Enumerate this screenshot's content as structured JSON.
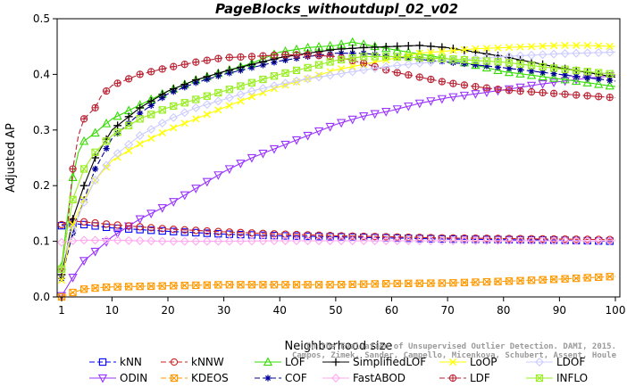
{
  "chart_data": {
    "type": "line",
    "title": "PageBlocks_withoutdupl_02_v02",
    "xlabel": "Neighborhood size",
    "ylabel": "Adjusted AP",
    "xlim": [
      1,
      100
    ],
    "ylim": [
      0,
      0.5
    ],
    "xticks": [
      1,
      10,
      20,
      30,
      40,
      50,
      60,
      70,
      80,
      90,
      100
    ],
    "yticks": [
      0.0,
      0.1,
      0.2,
      0.3,
      0.4,
      0.5
    ],
    "ytick_labels": [
      "0.0",
      "0.1",
      "0.2",
      "0.3",
      "0.4",
      "0.5"
    ],
    "grid": false,
    "legend_position": "bottom",
    "watermark": [
      "Campos, Zimek, Sander, Campello, Micenkova, Schubert, Assent, Houle",
      "On the Evaluation of Unsupervised Outlier Detection. DAMI, 2015."
    ],
    "series": [
      {
        "name": "kNN",
        "color": "#0000ff",
        "marker": "square",
        "dash": "6,3",
        "points": [
          [
            1,
            0.128
          ],
          [
            2,
            0.131
          ],
          [
            3,
            0.132
          ],
          [
            5,
            0.13
          ],
          [
            10,
            0.124
          ],
          [
            20,
            0.118
          ],
          [
            30,
            0.113
          ],
          [
            40,
            0.11
          ],
          [
            50,
            0.108
          ],
          [
            60,
            0.106
          ],
          [
            70,
            0.104
          ],
          [
            80,
            0.103
          ],
          [
            90,
            0.102
          ],
          [
            100,
            0.1
          ]
        ]
      },
      {
        "name": "ODIN",
        "color": "#9933ff",
        "marker": "triangle-down",
        "dash": "",
        "points": [
          [
            1,
            0.002
          ],
          [
            3,
            0.035
          ],
          [
            5,
            0.065
          ],
          [
            8,
            0.09
          ],
          [
            10,
            0.108
          ],
          [
            15,
            0.14
          ],
          [
            20,
            0.165
          ],
          [
            25,
            0.195
          ],
          [
            30,
            0.225
          ],
          [
            35,
            0.25
          ],
          [
            40,
            0.27
          ],
          [
            45,
            0.29
          ],
          [
            50,
            0.31
          ],
          [
            55,
            0.325
          ],
          [
            60,
            0.335
          ],
          [
            65,
            0.348
          ],
          [
            70,
            0.358
          ],
          [
            75,
            0.365
          ],
          [
            80,
            0.372
          ],
          [
            85,
            0.38
          ],
          [
            90,
            0.387
          ],
          [
            95,
            0.393
          ],
          [
            100,
            0.398
          ]
        ]
      },
      {
        "name": "kNNW",
        "color": "#cc2222",
        "marker": "circle",
        "dash": "6,3",
        "points": [
          [
            1,
            0.13
          ],
          [
            2,
            0.134
          ],
          [
            3,
            0.136
          ],
          [
            5,
            0.135
          ],
          [
            10,
            0.13
          ],
          [
            20,
            0.122
          ],
          [
            30,
            0.117
          ],
          [
            40,
            0.113
          ],
          [
            50,
            0.11
          ],
          [
            60,
            0.108
          ],
          [
            70,
            0.106
          ],
          [
            80,
            0.105
          ],
          [
            90,
            0.104
          ],
          [
            100,
            0.103
          ]
        ]
      },
      {
        "name": "KDEOS",
        "color": "#ff9900",
        "marker": "square-x",
        "dash": "6,3",
        "points": [
          [
            1,
            0.0
          ],
          [
            3,
            0.008
          ],
          [
            5,
            0.014
          ],
          [
            8,
            0.017
          ],
          [
            10,
            0.018
          ],
          [
            20,
            0.02
          ],
          [
            30,
            0.022
          ],
          [
            40,
            0.022
          ],
          [
            50,
            0.022
          ],
          [
            60,
            0.024
          ],
          [
            70,
            0.025
          ],
          [
            80,
            0.028
          ],
          [
            90,
            0.032
          ],
          [
            100,
            0.037
          ]
        ]
      },
      {
        "name": "LOF",
        "color": "#33dd00",
        "marker": "triangle",
        "dash": "",
        "points": [
          [
            1,
            0.055
          ],
          [
            2,
            0.14
          ],
          [
            3,
            0.215
          ],
          [
            4,
            0.26
          ],
          [
            5,
            0.28
          ],
          [
            7,
            0.295
          ],
          [
            10,
            0.32
          ],
          [
            15,
            0.345
          ],
          [
            20,
            0.37
          ],
          [
            25,
            0.39
          ],
          [
            30,
            0.405
          ],
          [
            35,
            0.42
          ],
          [
            40,
            0.44
          ],
          [
            45,
            0.448
          ],
          [
            50,
            0.452
          ],
          [
            53,
            0.458
          ],
          [
            55,
            0.454
          ],
          [
            60,
            0.445
          ],
          [
            70,
            0.428
          ],
          [
            80,
            0.405
          ],
          [
            90,
            0.392
          ],
          [
            100,
            0.378
          ]
        ]
      },
      {
        "name": "COF",
        "color": "#000099",
        "marker": "asterisk",
        "dash": "6,3",
        "points": [
          [
            1,
            0.033
          ],
          [
            2,
            0.075
          ],
          [
            3,
            0.115
          ],
          [
            5,
            0.175
          ],
          [
            7,
            0.23
          ],
          [
            10,
            0.285
          ],
          [
            15,
            0.33
          ],
          [
            20,
            0.365
          ],
          [
            25,
            0.385
          ],
          [
            30,
            0.4
          ],
          [
            35,
            0.412
          ],
          [
            40,
            0.424
          ],
          [
            45,
            0.432
          ],
          [
            50,
            0.438
          ],
          [
            55,
            0.438
          ],
          [
            60,
            0.432
          ],
          [
            70,
            0.422
          ],
          [
            80,
            0.412
          ],
          [
            90,
            0.4
          ],
          [
            100,
            0.388
          ]
        ]
      },
      {
        "name": "SimplifiedLOF",
        "color": "#000000",
        "marker": "plus",
        "dash": "",
        "points": [
          [
            1,
            0.04
          ],
          [
            2,
            0.09
          ],
          [
            3,
            0.14
          ],
          [
            5,
            0.2
          ],
          [
            7,
            0.25
          ],
          [
            10,
            0.3
          ],
          [
            15,
            0.34
          ],
          [
            20,
            0.37
          ],
          [
            25,
            0.39
          ],
          [
            30,
            0.405
          ],
          [
            35,
            0.418
          ],
          [
            40,
            0.43
          ],
          [
            45,
            0.438
          ],
          [
            50,
            0.445
          ],
          [
            55,
            0.448
          ],
          [
            60,
            0.45
          ],
          [
            65,
            0.452
          ],
          [
            70,
            0.448
          ],
          [
            75,
            0.44
          ],
          [
            80,
            0.432
          ],
          [
            90,
            0.412
          ],
          [
            100,
            0.395
          ]
        ]
      },
      {
        "name": "FastABOD",
        "color": "#ffaaee",
        "marker": "diamond",
        "dash": "",
        "points": [
          [
            1,
            0.098
          ],
          [
            3,
            0.101
          ],
          [
            5,
            0.102
          ],
          [
            10,
            0.102
          ],
          [
            20,
            0.1
          ],
          [
            30,
            0.1
          ],
          [
            40,
            0.101
          ],
          [
            50,
            0.101
          ],
          [
            60,
            0.101
          ],
          [
            70,
            0.101
          ],
          [
            80,
            0.101
          ],
          [
            90,
            0.101
          ],
          [
            100,
            0.101
          ]
        ]
      },
      {
        "name": "LoOP",
        "color": "#ffff00",
        "marker": "x",
        "dash": "",
        "points": [
          [
            1,
            0.03
          ],
          [
            2,
            0.08
          ],
          [
            3,
            0.13
          ],
          [
            5,
            0.175
          ],
          [
            7,
            0.21
          ],
          [
            10,
            0.245
          ],
          [
            15,
            0.275
          ],
          [
            20,
            0.3
          ],
          [
            25,
            0.32
          ],
          [
            30,
            0.34
          ],
          [
            35,
            0.36
          ],
          [
            40,
            0.378
          ],
          [
            45,
            0.392
          ],
          [
            50,
            0.408
          ],
          [
            55,
            0.418
          ],
          [
            60,
            0.428
          ],
          [
            65,
            0.438
          ],
          [
            70,
            0.442
          ],
          [
            75,
            0.446
          ],
          [
            80,
            0.448
          ],
          [
            85,
            0.45
          ],
          [
            90,
            0.452
          ],
          [
            95,
            0.452
          ],
          [
            100,
            0.45
          ]
        ]
      },
      {
        "name": "LDF",
        "color": "#bb2233",
        "marker": "circle-plus",
        "dash": "6,3",
        "points": [
          [
            1,
            0.05
          ],
          [
            2,
            0.12
          ],
          [
            3,
            0.23
          ],
          [
            4,
            0.29
          ],
          [
            5,
            0.32
          ],
          [
            7,
            0.34
          ],
          [
            8,
            0.36
          ],
          [
            10,
            0.38
          ],
          [
            15,
            0.4
          ],
          [
            20,
            0.412
          ],
          [
            25,
            0.422
          ],
          [
            30,
            0.43
          ],
          [
            35,
            0.432
          ],
          [
            40,
            0.435
          ],
          [
            45,
            0.435
          ],
          [
            50,
            0.432
          ],
          [
            55,
            0.42
          ],
          [
            60,
            0.405
          ],
          [
            65,
            0.395
          ],
          [
            70,
            0.385
          ],
          [
            75,
            0.378
          ],
          [
            80,
            0.372
          ],
          [
            90,
            0.365
          ],
          [
            100,
            0.358
          ]
        ]
      },
      {
        "name": "LDOF",
        "color": "#ccccff",
        "marker": "diamond",
        "dash": "",
        "points": [
          [
            1,
            0.05
          ],
          [
            2,
            0.09
          ],
          [
            3,
            0.12
          ],
          [
            5,
            0.17
          ],
          [
            7,
            0.21
          ],
          [
            10,
            0.25
          ],
          [
            15,
            0.29
          ],
          [
            20,
            0.318
          ],
          [
            25,
            0.34
          ],
          [
            30,
            0.355
          ],
          [
            35,
            0.37
          ],
          [
            40,
            0.382
          ],
          [
            45,
            0.392
          ],
          [
            50,
            0.4
          ],
          [
            55,
            0.408
          ],
          [
            60,
            0.415
          ],
          [
            70,
            0.425
          ],
          [
            80,
            0.432
          ],
          [
            90,
            0.437
          ],
          [
            100,
            0.44
          ]
        ]
      },
      {
        "name": "INFLO",
        "color": "#99ee22",
        "marker": "square-x",
        "dash": "",
        "points": [
          [
            1,
            0.05
          ],
          [
            2,
            0.12
          ],
          [
            3,
            0.175
          ],
          [
            5,
            0.23
          ],
          [
            7,
            0.26
          ],
          [
            10,
            0.29
          ],
          [
            15,
            0.32
          ],
          [
            20,
            0.34
          ],
          [
            25,
            0.355
          ],
          [
            30,
            0.37
          ],
          [
            35,
            0.385
          ],
          [
            40,
            0.4
          ],
          [
            45,
            0.412
          ],
          [
            50,
            0.425
          ],
          [
            55,
            0.432
          ],
          [
            60,
            0.432
          ],
          [
            70,
            0.428
          ],
          [
            80,
            0.422
          ],
          [
            90,
            0.41
          ],
          [
            100,
            0.4
          ]
        ]
      }
    ]
  }
}
